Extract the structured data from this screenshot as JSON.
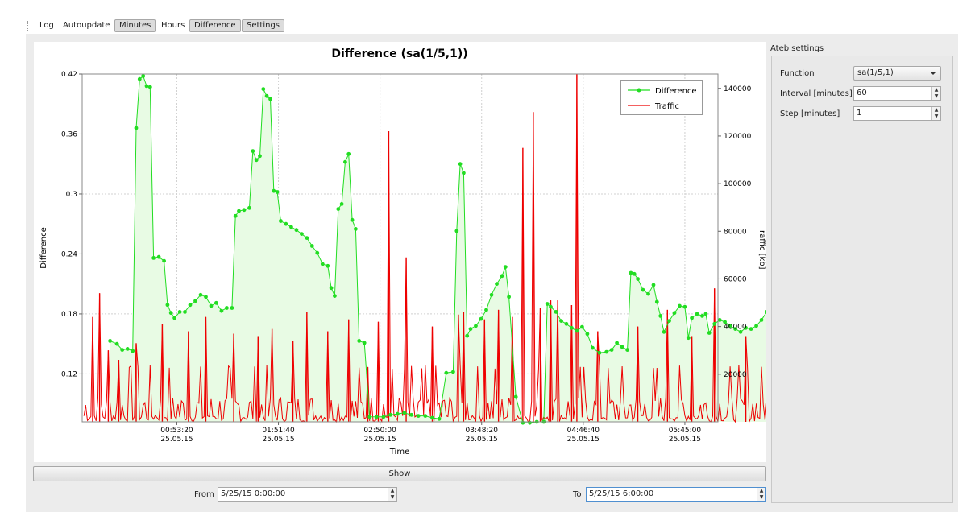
{
  "tabs": [
    {
      "label": "Log",
      "selected": false
    },
    {
      "label": "Autoupdate",
      "selected": false
    },
    {
      "label": "Minutes",
      "selected": true
    },
    {
      "label": "Hours",
      "selected": false
    },
    {
      "label": "Difference",
      "selected": true
    },
    {
      "label": "Settings",
      "selected": true
    }
  ],
  "chart_data": {
    "type": "line",
    "title": "Difference (sa(1/5,1))",
    "xlabel": "Time",
    "ylabel": "Difference",
    "y2label": "Traffic [kb]",
    "ylim": [
      0.072,
      0.42
    ],
    "yticks": [
      "0.42",
      "0.36",
      "0.3",
      "0.24",
      "0.18",
      "0.12"
    ],
    "y2lim": [
      0,
      146000
    ],
    "y2ticks": [
      "140000",
      "120000",
      "100000",
      "80000",
      "60000",
      "40000",
      "20000"
    ],
    "xlim": [
      "23:59:00",
      "06:04:00"
    ],
    "xticks": [
      {
        "time": "00:53:20",
        "date": "25.05.15"
      },
      {
        "time": "01:51:40",
        "date": "25.05.15"
      },
      {
        "time": "02:50:00",
        "date": "25.05.15"
      },
      {
        "time": "03:48:20",
        "date": "25.05.15"
      },
      {
        "time": "04:46:40",
        "date": "25.05.15"
      },
      {
        "time": "05:45:00",
        "date": "25.05.15"
      }
    ],
    "grid": true,
    "legend_position": "top-right",
    "series": [
      {
        "name": "Difference",
        "color": "#22dd22",
        "fill": "#e8fbe4",
        "axis": "left",
        "points": [
          [
            15,
            0.153
          ],
          [
            19,
            0.15
          ],
          [
            22,
            0.144
          ],
          [
            25,
            0.145
          ],
          [
            28,
            0.143
          ],
          [
            30,
            0.366
          ],
          [
            32,
            0.415
          ],
          [
            34,
            0.418
          ],
          [
            36,
            0.408
          ],
          [
            38,
            0.407
          ],
          [
            40,
            0.236
          ],
          [
            43,
            0.237
          ],
          [
            46,
            0.233
          ],
          [
            48,
            0.189
          ],
          [
            50,
            0.181
          ],
          [
            52,
            0.176
          ],
          [
            55,
            0.182
          ],
          [
            58,
            0.182
          ],
          [
            61,
            0.189
          ],
          [
            64,
            0.193
          ],
          [
            67,
            0.199
          ],
          [
            70,
            0.197
          ],
          [
            73,
            0.188
          ],
          [
            76,
            0.191
          ],
          [
            79,
            0.183
          ],
          [
            82,
            0.186
          ],
          [
            85,
            0.186
          ],
          [
            87,
            0.278
          ],
          [
            89,
            0.283
          ],
          [
            92,
            0.284
          ],
          [
            95,
            0.286
          ],
          [
            97,
            0.343
          ],
          [
            99,
            0.334
          ],
          [
            101,
            0.338
          ],
          [
            103,
            0.405
          ],
          [
            105,
            0.398
          ],
          [
            107,
            0.395
          ],
          [
            109,
            0.303
          ],
          [
            111,
            0.302
          ],
          [
            113,
            0.273
          ],
          [
            116,
            0.27
          ],
          [
            119,
            0.267
          ],
          [
            122,
            0.264
          ],
          [
            125,
            0.26
          ],
          [
            128,
            0.256
          ],
          [
            131,
            0.248
          ],
          [
            134,
            0.241
          ],
          [
            137,
            0.23
          ],
          [
            140,
            0.228
          ],
          [
            142,
            0.206
          ],
          [
            144,
            0.198
          ],
          [
            146,
            0.285
          ],
          [
            148,
            0.29
          ],
          [
            150,
            0.332
          ],
          [
            152,
            0.34
          ],
          [
            154,
            0.274
          ],
          [
            156,
            0.265
          ],
          [
            158,
            0.153
          ],
          [
            161,
            0.151
          ],
          [
            164,
            0.077
          ],
          [
            168,
            0.077
          ],
          [
            172,
            0.077
          ],
          [
            176,
            0.079
          ],
          [
            180,
            0.08
          ],
          [
            184,
            0.081
          ],
          [
            188,
            0.079
          ],
          [
            192,
            0.078
          ],
          [
            196,
            0.078
          ],
          [
            200,
            0.076
          ],
          [
            204,
            0.075
          ],
          [
            208,
            0.121
          ],
          [
            212,
            0.122
          ],
          [
            214,
            0.263
          ],
          [
            216,
            0.33
          ],
          [
            218,
            0.321
          ],
          [
            220,
            0.158
          ],
          [
            222,
            0.165
          ],
          [
            225,
            0.168
          ],
          [
            228,
            0.175
          ],
          [
            231,
            0.184
          ],
          [
            234,
            0.199
          ],
          [
            237,
            0.21
          ],
          [
            240,
            0.218
          ],
          [
            242,
            0.227
          ],
          [
            244,
            0.197
          ],
          [
            248,
            0.097
          ],
          [
            252,
            0.071
          ],
          [
            256,
            0.071
          ],
          [
            260,
            0.072
          ],
          [
            264,
            0.072
          ],
          [
            266,
            0.19
          ],
          [
            268,
            0.187
          ],
          [
            271,
            0.182
          ],
          [
            274,
            0.173
          ],
          [
            277,
            0.17
          ],
          [
            280,
            0.166
          ],
          [
            283,
            0.163
          ],
          [
            286,
            0.167
          ],
          [
            289,
            0.16
          ],
          [
            292,
            0.146
          ],
          [
            296,
            0.141
          ],
          [
            300,
            0.142
          ],
          [
            303,
            0.144
          ],
          [
            306,
            0.151
          ],
          [
            309,
            0.147
          ],
          [
            312,
            0.144
          ],
          [
            314,
            0.221
          ],
          [
            316,
            0.22
          ],
          [
            318,
            0.215
          ],
          [
            321,
            0.204
          ],
          [
            324,
            0.2
          ],
          [
            327,
            0.209
          ],
          [
            329,
            0.192
          ],
          [
            331,
            0.178
          ],
          [
            333,
            0.162
          ],
          [
            336,
            0.173
          ],
          [
            339,
            0.181
          ],
          [
            342,
            0.188
          ],
          [
            345,
            0.187
          ],
          [
            347,
            0.156
          ],
          [
            349,
            0.176
          ],
          [
            352,
            0.18
          ],
          [
            355,
            0.178
          ],
          [
            357,
            0.18
          ],
          [
            359,
            0.161
          ],
          [
            362,
            0.17
          ],
          [
            365,
            0.174
          ],
          [
            368,
            0.172
          ],
          [
            371,
            0.168
          ],
          [
            374,
            0.165
          ],
          [
            377,
            0.162
          ],
          [
            380,
            0.166
          ],
          [
            383,
            0.165
          ],
          [
            386,
            0.168
          ],
          [
            389,
            0.174
          ],
          [
            392,
            0.182
          ],
          [
            394,
            0.186
          ],
          [
            396,
            0.298
          ],
          [
            398,
            0.328
          ],
          [
            400,
            0.334
          ],
          [
            402,
            0.33
          ],
          [
            404,
            0.329
          ],
          [
            406,
            0.327
          ],
          [
            408,
            0.303
          ],
          [
            410,
            0.298
          ],
          [
            412,
            0.368
          ],
          [
            414,
            0.372
          ],
          [
            416,
            0.37
          ],
          [
            418,
            0.376
          ],
          [
            420,
            0.369
          ],
          [
            420,
            0.35
          ]
        ]
      },
      {
        "name": "Traffic",
        "color": "#ee0000",
        "axis": "right",
        "peaks": [
          [
            5,
            44000
          ],
          [
            9,
            54000
          ],
          [
            14,
            30000
          ],
          [
            20,
            26000
          ],
          [
            30,
            33000
          ],
          [
            45,
            41000
          ],
          [
            60,
            38000
          ],
          [
            70,
            44000
          ],
          [
            86,
            37000
          ],
          [
            100,
            36000
          ],
          [
            108,
            39000
          ],
          [
            120,
            34000
          ],
          [
            128,
            46000
          ],
          [
            140,
            38000
          ],
          [
            152,
            43000
          ],
          [
            163,
            23000
          ],
          [
            169,
            42000
          ],
          [
            175,
            122000
          ],
          [
            185,
            69000
          ],
          [
            200,
            40000
          ],
          [
            215,
            45000
          ],
          [
            218,
            46000
          ],
          [
            230,
            43000
          ],
          [
            238,
            47000
          ],
          [
            246,
            44000
          ],
          [
            252,
            115000
          ],
          [
            258,
            130000
          ],
          [
            262,
            48000
          ],
          [
            268,
            51000
          ],
          [
            272,
            51000
          ],
          [
            280,
            49000
          ],
          [
            283,
            146000
          ],
          [
            295,
            38000
          ],
          [
            318,
            40000
          ],
          [
            335,
            47000
          ],
          [
            349,
            36000
          ],
          [
            362,
            56000
          ],
          [
            380,
            36000
          ],
          [
            394,
            39000
          ],
          [
            408,
            46000
          ],
          [
            418,
            34000
          ]
        ]
      }
    ]
  },
  "show_button": {
    "label": "Show"
  },
  "from": {
    "label": "From",
    "value": "5/25/15 0:00:00"
  },
  "to": {
    "label": "To",
    "value": "5/25/15 6:00:00"
  },
  "settings": {
    "title": "Ateb settings",
    "function": {
      "label": "Function",
      "value": "sa(1/5,1)"
    },
    "interval": {
      "label": "Interval [minutes]",
      "value": "60"
    },
    "step": {
      "label": "Step [minutes]",
      "value": "1"
    }
  }
}
